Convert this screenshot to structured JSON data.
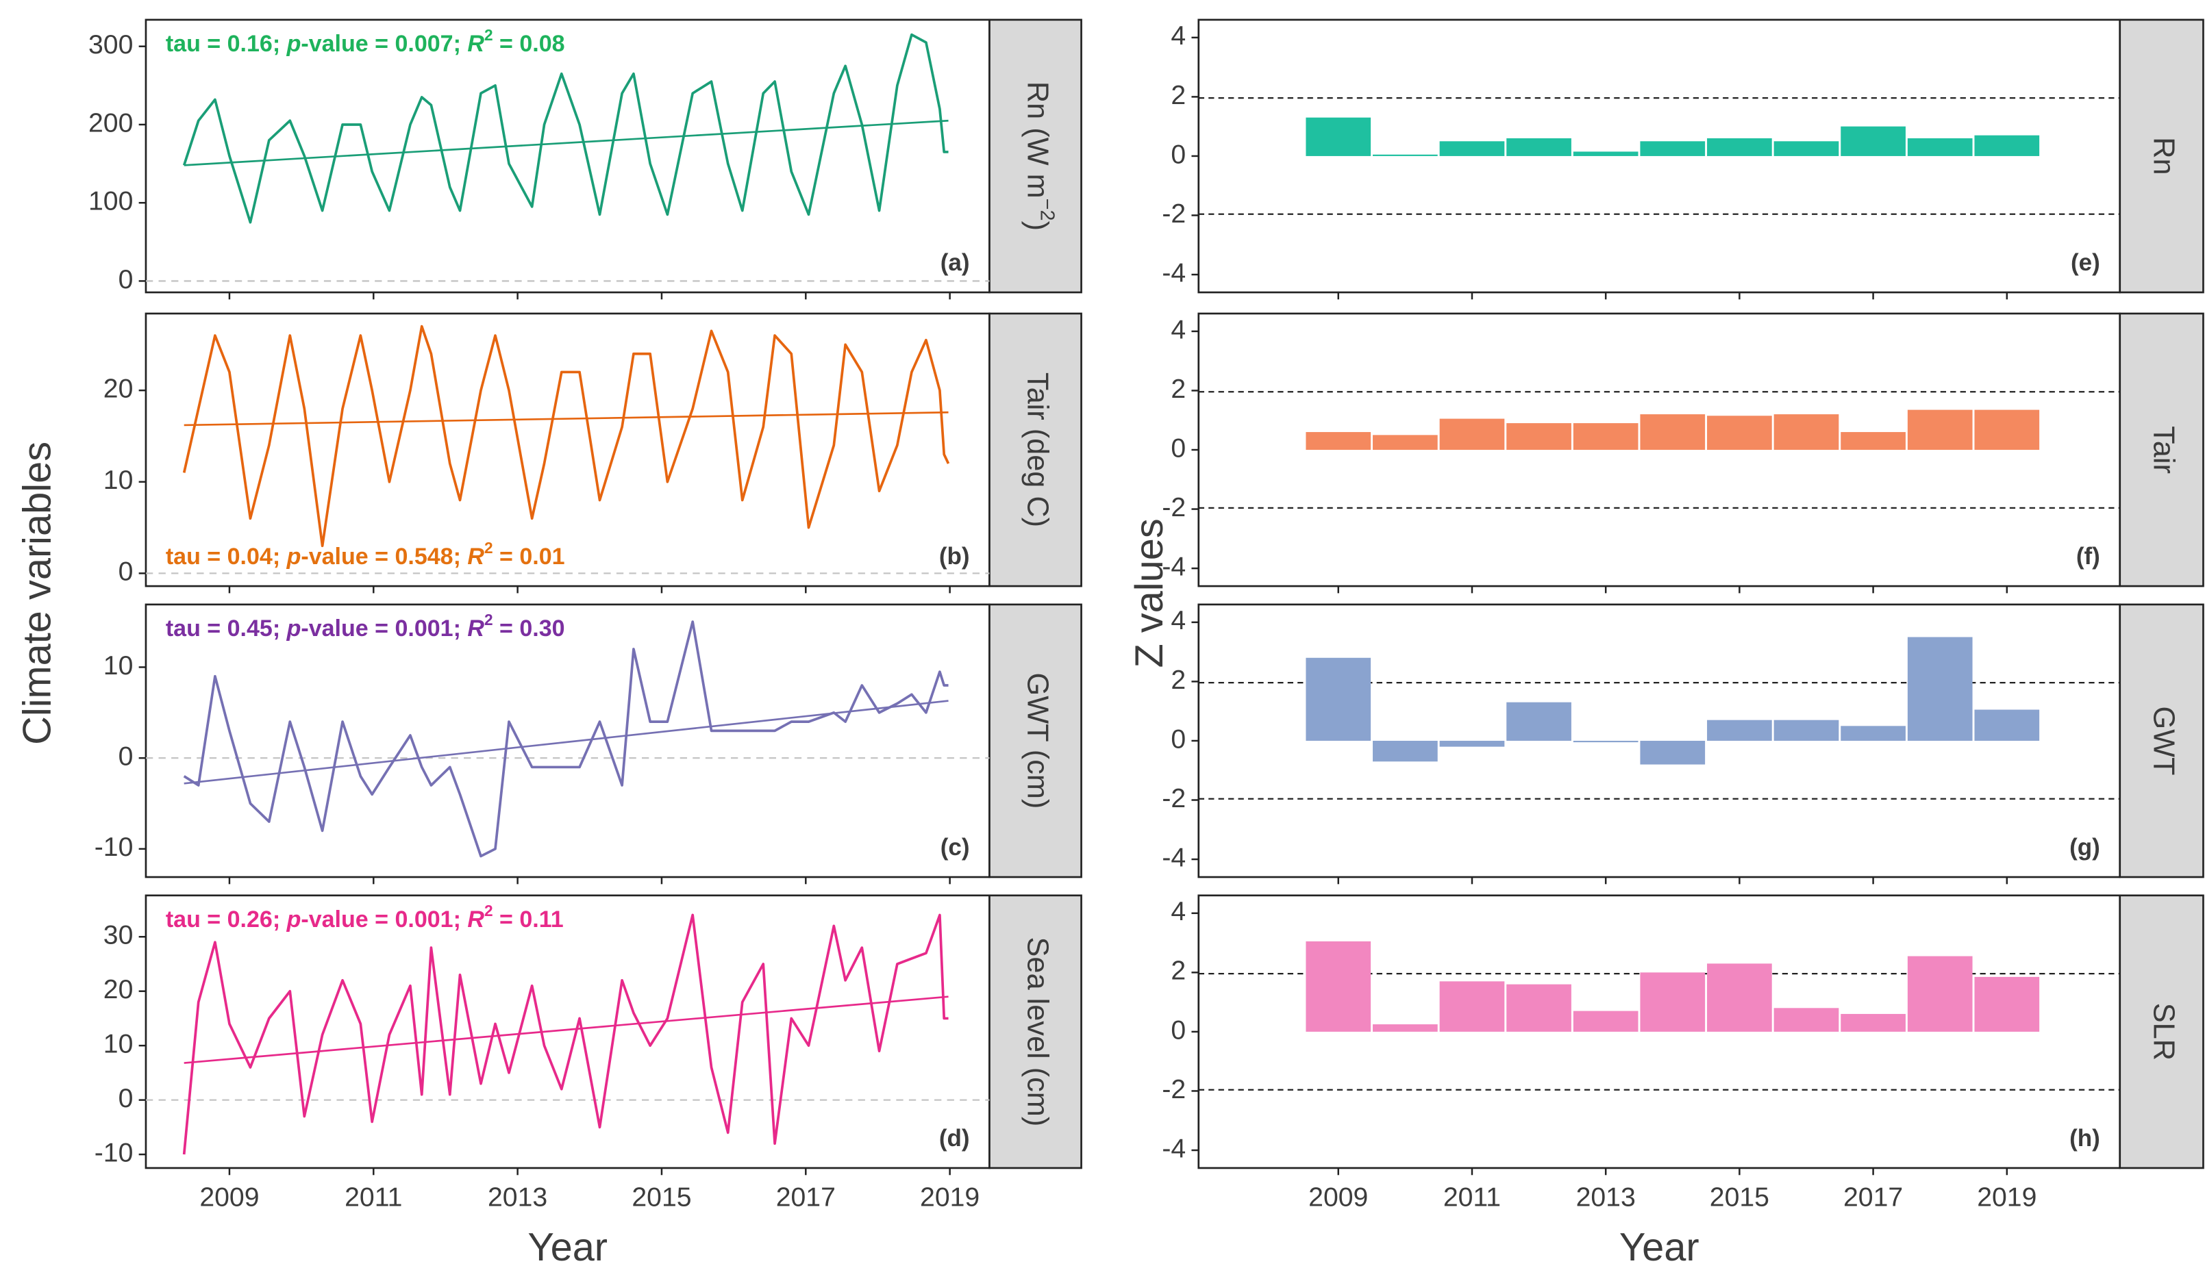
{
  "chart_data": [
    {
      "type": "line",
      "strip": [
        "Rn (W m",
        "−2",
        ")"
      ],
      "panel_label": "(a)",
      "color": "#1a9e77",
      "text_color": "#1eb35c",
      "annotation": [
        "tau = 0.16; ",
        "p",
        "-value = 0.007; ",
        "R",
        "2",
        " = 0.08"
      ],
      "xlim": [
        2007.84,
        2019.55
      ],
      "ylim": [
        -14.5,
        334
      ],
      "yticks": [
        0,
        100,
        200,
        300
      ],
      "reference_lines": [
        0
      ],
      "x": [
        2008.37,
        2008.57,
        2008.8,
        2009.0,
        2009.29,
        2009.55,
        2009.84,
        2010.04,
        2010.29,
        2010.57,
        2010.82,
        2010.98,
        2011.22,
        2011.51,
        2011.67,
        2011.8,
        2012.06,
        2012.2,
        2012.49,
        2012.69,
        2012.88,
        2013.2,
        2013.37,
        2013.61,
        2013.86,
        2014.14,
        2014.45,
        2014.61,
        2014.84,
        2015.08,
        2015.43,
        2015.69,
        2015.92,
        2016.12,
        2016.41,
        2016.57,
        2016.8,
        2017.04,
        2017.39,
        2017.55,
        2017.78,
        2018.02,
        2018.27,
        2018.47,
        2018.67,
        2018.86,
        2018.92,
        2018.98
      ],
      "values": [
        148,
        205,
        232,
        160,
        75,
        180,
        205,
        160,
        90,
        200,
        200,
        140,
        90,
        200,
        235,
        225,
        120,
        90,
        240,
        250,
        150,
        95,
        200,
        265,
        200,
        85,
        240,
        265,
        150,
        85,
        240,
        255,
        150,
        90,
        240,
        255,
        140,
        85,
        240,
        275,
        200,
        90,
        250,
        315,
        305,
        220,
        165,
        165
      ],
      "trend": {
        "x": [
          2008.37,
          2018.98
        ],
        "values": [
          148,
          205
        ]
      }
    },
    {
      "type": "line",
      "strip": [
        "Tair (deg C)"
      ],
      "panel_label": "(b)",
      "color": "#e6650f",
      "text_color": "#e4710f",
      "annotation": [
        "tau = 0.04; ",
        "p",
        "-value = 0.548; ",
        "R",
        "2",
        " = 0.01"
      ],
      "xlim": [
        2007.84,
        2019.55
      ],
      "ylim": [
        -1.4,
        28.4
      ],
      "yticks": [
        0,
        10,
        20
      ],
      "reference_lines": [
        0
      ],
      "x": [
        2008.37,
        2008.57,
        2008.8,
        2009.0,
        2009.29,
        2009.55,
        2009.84,
        2010.04,
        2010.29,
        2010.57,
        2010.82,
        2010.98,
        2011.22,
        2011.51,
        2011.67,
        2011.8,
        2012.06,
        2012.2,
        2012.49,
        2012.69,
        2012.88,
        2013.2,
        2013.37,
        2013.61,
        2013.86,
        2014.14,
        2014.45,
        2014.61,
        2014.84,
        2015.08,
        2015.43,
        2015.69,
        2015.92,
        2016.12,
        2016.41,
        2016.57,
        2016.8,
        2017.04,
        2017.39,
        2017.55,
        2017.78,
        2018.02,
        2018.27,
        2018.47,
        2018.67,
        2018.86,
        2018.92,
        2018.98
      ],
      "values": [
        11,
        18,
        26,
        22,
        6,
        14,
        26,
        18,
        3,
        18,
        26,
        20,
        10,
        20,
        27,
        24,
        12,
        8,
        20,
        26,
        20,
        6,
        12,
        22,
        22,
        8,
        16,
        24,
        24,
        10,
        18,
        26.5,
        22,
        8,
        16,
        26,
        24,
        5,
        14,
        25,
        22,
        9,
        14,
        22,
        25.5,
        20,
        13,
        12
      ],
      "trend": {
        "x": [
          2008.37,
          2018.98
        ],
        "values": [
          16.2,
          17.6
        ]
      }
    },
    {
      "type": "line",
      "strip": [
        "GWT (cm)"
      ],
      "panel_label": "(c)",
      "color": "#7570b3",
      "text_color": "#7b2fa0",
      "annotation": [
        "tau = 0.45; ",
        "p",
        "-value = 0.001; ",
        "R",
        "2",
        " = 0.30"
      ],
      "xlim": [
        2007.84,
        2019.55
      ],
      "ylim": [
        -13.1,
        16.9
      ],
      "yticks": [
        -10,
        0,
        10
      ],
      "reference_lines": [
        0
      ],
      "x": [
        2008.37,
        2008.57,
        2008.8,
        2009.0,
        2009.29,
        2009.55,
        2009.84,
        2010.04,
        2010.29,
        2010.57,
        2010.82,
        2010.98,
        2011.22,
        2011.51,
        2011.67,
        2011.8,
        2012.06,
        2012.2,
        2012.49,
        2012.69,
        2012.88,
        2013.2,
        2013.37,
        2013.61,
        2013.86,
        2014.14,
        2014.45,
        2014.61,
        2014.84,
        2015.08,
        2015.43,
        2015.69,
        2015.92,
        2016.12,
        2016.41,
        2016.57,
        2016.8,
        2017.04,
        2017.39,
        2017.55,
        2017.78,
        2018.02,
        2018.27,
        2018.47,
        2018.67,
        2018.86,
        2018.92,
        2018.98
      ],
      "values": [
        -2,
        -3,
        9,
        3,
        -5,
        -7,
        4,
        -1,
        -8,
        4,
        -2,
        -4,
        -1,
        2.5,
        -1,
        -3,
        -1,
        -4,
        -10.8,
        -10,
        4,
        -1,
        -1,
        -1,
        -1,
        4,
        -3,
        12,
        4,
        4,
        15,
        3,
        3,
        3,
        3,
        3,
        4,
        4,
        5,
        4,
        8,
        5,
        6,
        7,
        5,
        9.5,
        8,
        8
      ],
      "trend": {
        "x": [
          2008.37,
          2018.98
        ],
        "values": [
          -2.8,
          6.3
        ]
      }
    },
    {
      "type": "line",
      "strip": [
        "Sea level (cm)"
      ],
      "panel_label": "(d)",
      "color": "#e7298a",
      "text_color": "#e7298a",
      "annotation": [
        "tau = 0.26; ",
        "p",
        "-value = 0.001; ",
        "R",
        "2",
        " = 0.11"
      ],
      "xlim": [
        2007.84,
        2019.55
      ],
      "xticks": [
        2009,
        2011,
        2013,
        2015,
        2017,
        2019
      ],
      "xlabel": "Year",
      "ylabel": "Climate variables",
      "ylim": [
        -12.5,
        37.6
      ],
      "yticks": [
        -10,
        0,
        10,
        20,
        30
      ],
      "reference_lines": [
        0
      ],
      "x": [
        2008.37,
        2008.57,
        2008.8,
        2009.0,
        2009.29,
        2009.55,
        2009.84,
        2010.04,
        2010.29,
        2010.57,
        2010.82,
        2010.98,
        2011.22,
        2011.51,
        2011.67,
        2011.8,
        2012.06,
        2012.2,
        2012.49,
        2012.69,
        2012.88,
        2013.2,
        2013.37,
        2013.61,
        2013.86,
        2014.14,
        2014.45,
        2014.61,
        2014.84,
        2015.08,
        2015.43,
        2015.69,
        2015.92,
        2016.12,
        2016.41,
        2016.57,
        2016.8,
        2017.04,
        2017.39,
        2017.55,
        2017.78,
        2018.02,
        2018.27,
        2018.47,
        2018.67,
        2018.86,
        2018.92,
        2018.98
      ],
      "values": [
        -10,
        18,
        29,
        14,
        6,
        15,
        20,
        -3,
        12,
        22,
        14,
        -4,
        12,
        21,
        1,
        28,
        1,
        23,
        3,
        14,
        5,
        21,
        10,
        2,
        15,
        -5,
        22,
        16,
        10,
        15,
        34,
        6,
        -6,
        18,
        25,
        -8,
        15,
        10,
        32,
        22,
        28,
        9,
        25,
        26,
        27,
        34,
        15,
        15
      ],
      "trend": {
        "x": [
          2008.37,
          2018.98
        ],
        "values": [
          6.8,
          19
        ]
      }
    },
    {
      "type": "bar",
      "strip": [
        "Rn"
      ],
      "panel_label": "(e)",
      "color": "#1fc0a0",
      "xlim": [
        2006.91,
        2020.69
      ],
      "ylim": [
        -4.6,
        4.6
      ],
      "yticks": [
        -4,
        -2,
        0,
        2,
        4
      ],
      "reference_lines": [
        1.96,
        -1.96
      ],
      "x": [
        2009,
        2010,
        2011,
        2012,
        2013,
        2014,
        2015,
        2016,
        2017,
        2018,
        2019
      ],
      "values": [
        1.3,
        0.05,
        0.5,
        0.6,
        0.15,
        0.5,
        0.6,
        0.5,
        1.0,
        0.6,
        0.7
      ]
    },
    {
      "type": "bar",
      "strip": [
        "Tair"
      ],
      "panel_label": "(f)",
      "color": "#f4895f",
      "xlim": [
        2006.91,
        2020.69
      ],
      "ylim": [
        -4.6,
        4.6
      ],
      "yticks": [
        -4,
        -2,
        0,
        2,
        4
      ],
      "reference_lines": [
        1.96,
        -1.96
      ],
      "x": [
        2009,
        2010,
        2011,
        2012,
        2013,
        2014,
        2015,
        2016,
        2017,
        2018,
        2019
      ],
      "values": [
        0.6,
        0.5,
        1.05,
        0.9,
        0.9,
        1.2,
        1.15,
        1.2,
        0.6,
        1.35,
        1.35
      ]
    },
    {
      "type": "bar",
      "strip": [
        "GWT"
      ],
      "panel_label": "(g)",
      "color": "#8aa3cf",
      "xlim": [
        2006.91,
        2020.69
      ],
      "ylim": [
        -4.6,
        4.6
      ],
      "yticks": [
        -4,
        -2,
        0,
        2,
        4
      ],
      "reference_lines": [
        1.96,
        -1.96
      ],
      "x": [
        2009,
        2010,
        2011,
        2012,
        2013,
        2014,
        2015,
        2016,
        2017,
        2018,
        2019
      ],
      "values": [
        2.8,
        -0.7,
        -0.2,
        1.3,
        -0.05,
        -0.8,
        0.7,
        0.7,
        0.5,
        3.5,
        1.05
      ]
    },
    {
      "type": "bar",
      "strip": [
        "SLR"
      ],
      "panel_label": "(h)",
      "color": "#f287c0",
      "xlim": [
        2006.91,
        2020.69
      ],
      "xticks": [
        2009,
        2011,
        2013,
        2015,
        2017,
        2019
      ],
      "xlabel": "Year",
      "ylabel": "Z values",
      "ylim": [
        -4.6,
        4.6
      ],
      "yticks": [
        -4,
        -2,
        0,
        2,
        4
      ],
      "reference_lines": [
        1.96,
        -1.96
      ],
      "x": [
        2009,
        2010,
        2011,
        2012,
        2013,
        2014,
        2015,
        2016,
        2017,
        2018,
        2019
      ],
      "values": [
        3.05,
        0.25,
        1.7,
        1.6,
        0.7,
        2.0,
        2.3,
        0.8,
        0.6,
        2.55,
        1.85
      ]
    }
  ]
}
